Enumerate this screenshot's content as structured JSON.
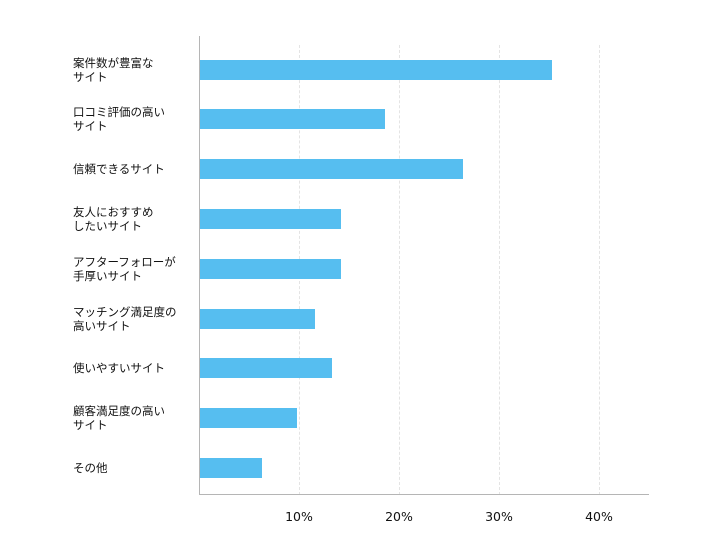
{
  "chart_data": {
    "type": "bar",
    "orientation": "horizontal",
    "title": "",
    "xlabel": "",
    "ylabel": "",
    "categories": [
      "案件数が豊富な\nサイト",
      "口コミ評価の高い\nサイト",
      "信頼できるサイト",
      "友人におすすめ\nしたいサイト",
      "アフターフォローが\n手厚いサイト",
      "マッチング満足度の\n高いサイト",
      "使いやすいサイト",
      "顧客満足度の高い\nサイト",
      "その他"
    ],
    "values": [
      35.2,
      18.5,
      26.3,
      14.1,
      14.1,
      11.5,
      13.2,
      9.7,
      6.2
    ],
    "unit": "%",
    "xlim": [
      0,
      45
    ],
    "xticks": [
      "10%",
      "20%",
      "30%",
      "40%"
    ],
    "xtick_values": [
      10,
      20,
      30,
      40
    ],
    "grid": "vertical dashed",
    "legend": null,
    "bar_color": "#56bef0"
  }
}
